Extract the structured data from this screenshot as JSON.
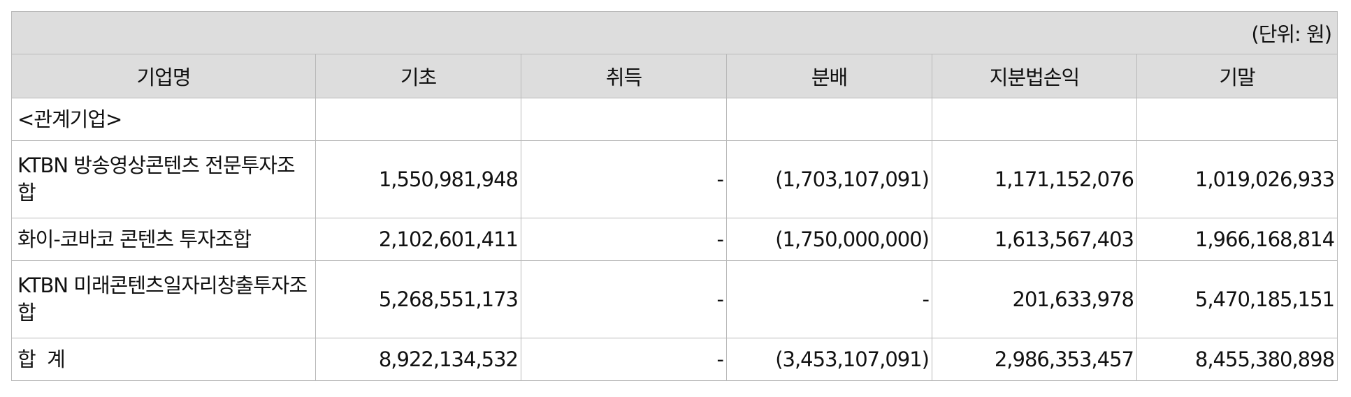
{
  "table": {
    "unit_label": "(단위: 원)",
    "headers": [
      "기업명",
      "기초",
      "취득",
      "분배",
      "지분법손익",
      "기말"
    ],
    "rows": [
      {
        "name": "<관계기업>",
        "values": [
          "",
          "",
          "",
          "",
          ""
        ]
      },
      {
        "name": "KTBN 방송영상콘텐츠 전문투자조합",
        "values": [
          "1,550,981,948",
          "-",
          "(1,703,107,091)",
          "1,171,152,076",
          "1,019,026,933"
        ]
      },
      {
        "name": "화이-코바코 콘텐츠 투자조합",
        "values": [
          "2,102,601,411",
          "-",
          "(1,750,000,000)",
          "1,613,567,403",
          "1,966,168,814"
        ]
      },
      {
        "name": "KTBN 미래콘텐츠일자리창출투자조합",
        "values": [
          "5,268,551,173",
          "-",
          "-",
          "201,633,978",
          "5,470,185,151"
        ]
      },
      {
        "name": "합  계",
        "values": [
          "8,922,134,532",
          "-",
          "(3,453,107,091)",
          "2,986,353,457",
          "8,455,380,898"
        ]
      }
    ]
  }
}
